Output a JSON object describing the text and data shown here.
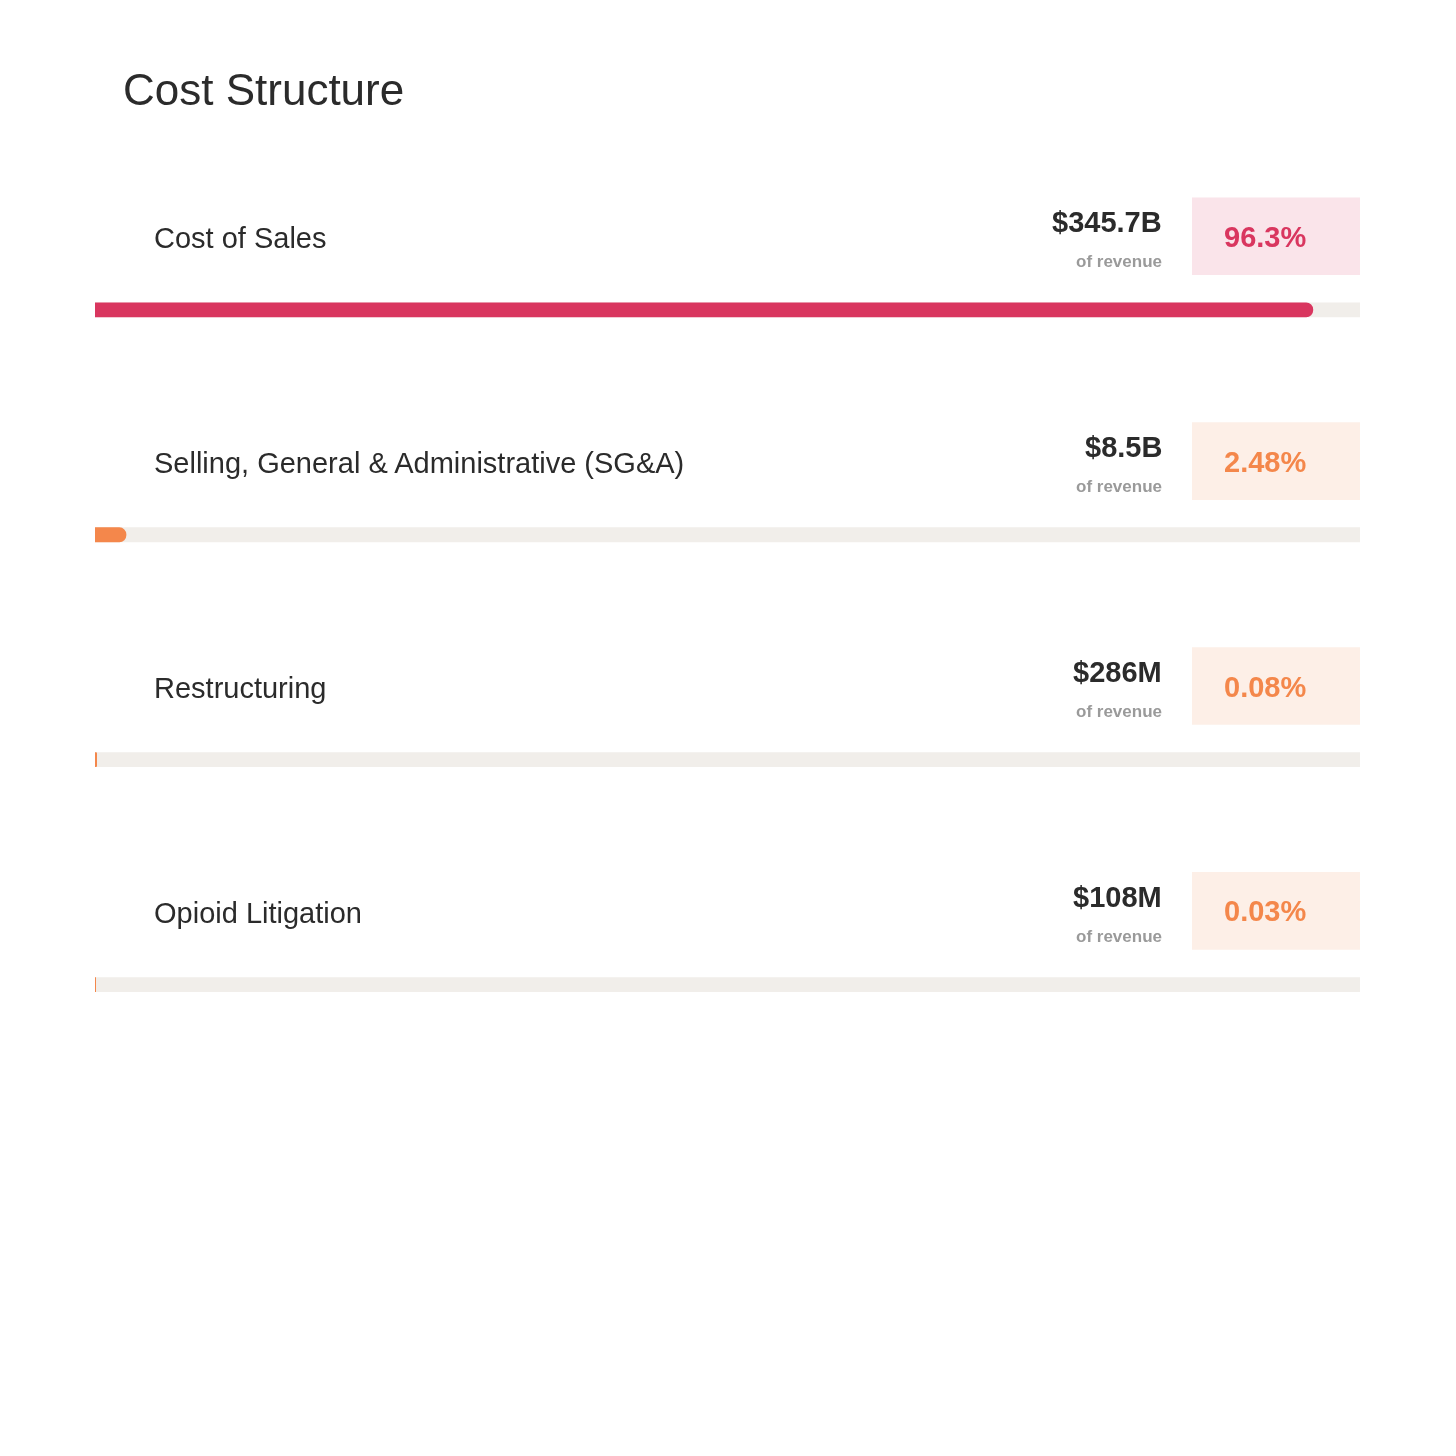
{
  "chart_data": {
    "type": "bar",
    "orientation": "horizontal",
    "title": "Cost Structure",
    "categories": [
      "Cost of Sales",
      "Selling, General & Administrative (SG&A)",
      "Restructuring",
      "Opioid Litigation"
    ],
    "values": [
      96.3,
      2.48,
      0.08,
      0.03
    ],
    "colors": [
      "#d9365f",
      "#f4874b",
      "#f4874b",
      "#f4874b"
    ],
    "value_labels": [
      "96.3%",
      "2.48%",
      "0.08%",
      "0.03%"
    ],
    "annotations": [
      "$345.7B",
      "of revenue",
      "$8.5B",
      "of revenue",
      "$286M",
      "of revenue",
      "$108M",
      "of revenue"
    ],
    "xlim": [
      0,
      100
    ],
    "tick_labels": "y",
    "legend": false
  }
}
